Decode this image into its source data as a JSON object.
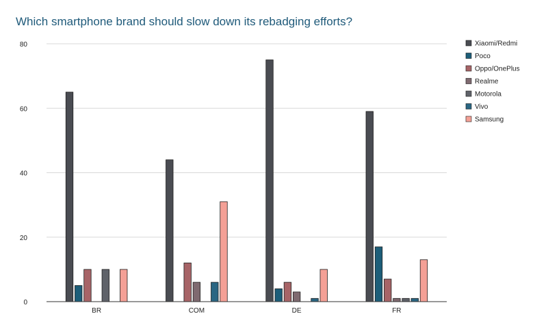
{
  "chart_data": {
    "type": "bar",
    "title": "Which smartphone brand should slow down its rebadging efforts?",
    "xlabel": "",
    "ylabel": "",
    "ylim": [
      0,
      80
    ],
    "yticks": [
      0,
      20,
      40,
      60,
      80
    ],
    "grid": true,
    "legend_position": "right",
    "categories": [
      "BR",
      "COM",
      "DE",
      "FR"
    ],
    "series": [
      {
        "name": "Xiaomi/Redmi",
        "color": "#4a4c52",
        "values": [
          65,
          44,
          75,
          59
        ]
      },
      {
        "name": "Poco",
        "color": "#1d5e79",
        "values": [
          5,
          0,
          4,
          17
        ]
      },
      {
        "name": "Oppo/OnePlus",
        "color": "#a76467",
        "values": [
          10,
          12,
          6,
          7
        ]
      },
      {
        "name": "Realme",
        "color": "#7f6a70",
        "values": [
          0,
          6,
          3,
          1
        ]
      },
      {
        "name": "Motorola",
        "color": "#5f6269",
        "values": [
          10,
          0,
          0,
          1
        ]
      },
      {
        "name": "Vivo",
        "color": "#2a6683",
        "values": [
          0,
          6,
          1,
          1
        ]
      },
      {
        "name": "Samsung",
        "color": "#f4a096",
        "values": [
          10,
          31,
          10,
          13
        ]
      }
    ]
  }
}
